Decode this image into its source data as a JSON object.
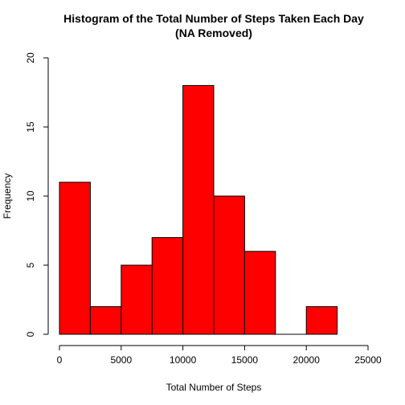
{
  "chart_data": {
    "type": "bar",
    "title": "Histogram of the Total Number of Steps Taken Each Day",
    "subtitle": "(NA Removed)",
    "xlabel": "Total Number of Steps",
    "ylabel": "Frequency",
    "bin_edges": [
      0,
      2500,
      5000,
      7500,
      10000,
      12500,
      15000,
      17500,
      20000,
      22500
    ],
    "values": [
      11,
      2,
      5,
      7,
      18,
      10,
      6,
      0,
      2
    ],
    "xlim": [
      0,
      25000
    ],
    "ylim": [
      0,
      20
    ],
    "x_ticks": [
      0,
      5000,
      10000,
      15000,
      20000,
      25000
    ],
    "y_ticks": [
      0,
      5,
      10,
      15,
      20
    ],
    "bar_color": "#ff0000",
    "grid": false
  }
}
